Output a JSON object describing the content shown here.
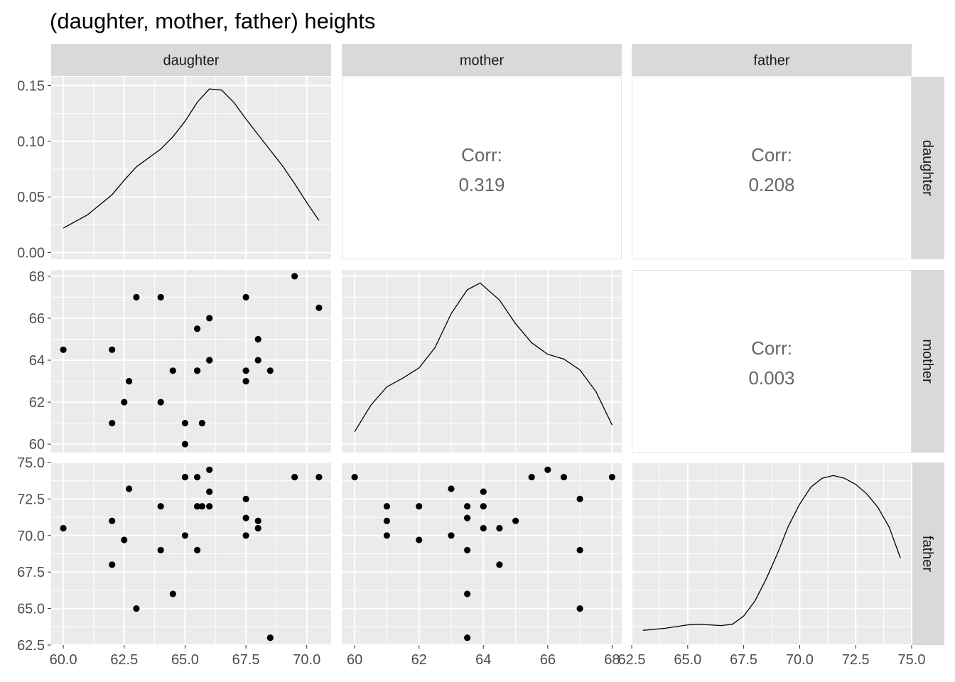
{
  "title": "(daughter, mother, father) heights",
  "variables": [
    "daughter",
    "mother",
    "father"
  ],
  "corr_label": "Corr:",
  "colors": {
    "panel_bg": "#EBEBEB",
    "strip_bg": "#D9D9D9",
    "grid": "#FFFFFF",
    "point": "#000000",
    "line": "#000000",
    "corr_text": "#666666",
    "axis_text": "#4D4D4D"
  },
  "chart_data": {
    "type": "scatter",
    "subtype": "pairs-matrix",
    "grid": true,
    "axes": {
      "daughter": {
        "range": [
          59.5,
          71.0
        ],
        "ticks": [
          60.0,
          62.5,
          65.0,
          67.5,
          70.0
        ],
        "tick_labels": [
          "60.0",
          "62.5",
          "65.0",
          "67.5",
          "70.0"
        ]
      },
      "mother": {
        "range": [
          59.6,
          68.3
        ],
        "ticks": [
          60,
          62,
          64,
          66,
          68
        ],
        "tick_labels": [
          "60",
          "62",
          "64",
          "66",
          "68"
        ]
      },
      "father": {
        "range": [
          62.5,
          75.0
        ],
        "ticks": [
          62.5,
          65.0,
          67.5,
          70.0,
          72.5,
          75.0
        ],
        "tick_labels": [
          "62.5",
          "65.0",
          "67.5",
          "70.0",
          "72.5",
          "75.0"
        ]
      },
      "density": {
        "range": [
          -0.006,
          0.158
        ],
        "ticks": [
          0.0,
          0.05,
          0.1,
          0.15
        ],
        "tick_labels": [
          "0.00",
          "0.05",
          "0.10",
          "0.15"
        ]
      }
    },
    "correlations": [
      {
        "row": "daughter",
        "col": "mother",
        "value": "0.319"
      },
      {
        "row": "daughter",
        "col": "father",
        "value": "0.208"
      },
      {
        "row": "mother",
        "col": "father",
        "value": "0.003"
      }
    ],
    "densities": {
      "daughter": [
        [
          60.0,
          0.022
        ],
        [
          61.0,
          0.034
        ],
        [
          62.0,
          0.052
        ],
        [
          62.5,
          0.065
        ],
        [
          63.0,
          0.077
        ],
        [
          64.0,
          0.093
        ],
        [
          64.5,
          0.104
        ],
        [
          65.0,
          0.118
        ],
        [
          65.5,
          0.135
        ],
        [
          66.0,
          0.147
        ],
        [
          66.5,
          0.146
        ],
        [
          67.0,
          0.135
        ],
        [
          67.5,
          0.12
        ],
        [
          68.0,
          0.106
        ],
        [
          68.5,
          0.092
        ],
        [
          69.0,
          0.078
        ],
        [
          69.5,
          0.062
        ],
        [
          70.0,
          0.045
        ],
        [
          70.5,
          0.029
        ]
      ],
      "mother": [
        [
          60.0,
          0.021
        ],
        [
          60.5,
          0.06
        ],
        [
          61.0,
          0.087
        ],
        [
          61.5,
          0.1
        ],
        [
          62.0,
          0.115
        ],
        [
          62.5,
          0.145
        ],
        [
          63.0,
          0.195
        ],
        [
          63.5,
          0.23
        ],
        [
          63.9,
          0.24
        ],
        [
          64.5,
          0.215
        ],
        [
          65.0,
          0.18
        ],
        [
          65.5,
          0.152
        ],
        [
          66.0,
          0.135
        ],
        [
          66.5,
          0.128
        ],
        [
          67.0,
          0.112
        ],
        [
          67.5,
          0.08
        ],
        [
          68.0,
          0.031
        ]
      ],
      "father": [
        [
          63.0,
          0.012
        ],
        [
          64.0,
          0.015
        ],
        [
          65.0,
          0.02
        ],
        [
          65.5,
          0.021
        ],
        [
          66.0,
          0.02
        ],
        [
          66.5,
          0.019
        ],
        [
          67.0,
          0.021
        ],
        [
          67.5,
          0.033
        ],
        [
          68.0,
          0.055
        ],
        [
          68.5,
          0.087
        ],
        [
          69.0,
          0.124
        ],
        [
          69.5,
          0.165
        ],
        [
          70.0,
          0.197
        ],
        [
          70.5,
          0.222
        ],
        [
          71.0,
          0.235
        ],
        [
          71.5,
          0.239
        ],
        [
          72.0,
          0.235
        ],
        [
          72.5,
          0.226
        ],
        [
          73.0,
          0.212
        ],
        [
          73.5,
          0.192
        ],
        [
          74.0,
          0.163
        ],
        [
          74.5,
          0.118
        ]
      ]
    },
    "points": [
      {
        "daughter": 60.0,
        "mother": 64.5,
        "father": 70.5
      },
      {
        "daughter": 62.0,
        "mother": 64.5,
        "father": 68.0
      },
      {
        "daughter": 62.0,
        "mother": 61.0,
        "father": 71.0
      },
      {
        "daughter": 62.5,
        "mother": 62.0,
        "father": 69.7
      },
      {
        "daughter": 62.7,
        "mother": 63.0,
        "father": 73.2
      },
      {
        "daughter": 63.0,
        "mother": 67.0,
        "father": 65.0
      },
      {
        "daughter": 64.0,
        "mother": 67.0,
        "father": 69.0
      },
      {
        "daughter": 64.0,
        "mother": 62.0,
        "father": 72.0
      },
      {
        "daughter": 64.5,
        "mother": 63.5,
        "father": 66.0
      },
      {
        "daughter": 65.0,
        "mother": 61.0,
        "father": 70.0
      },
      {
        "daughter": 65.0,
        "mother": 60.0,
        "father": 74.0
      },
      {
        "daughter": 65.5,
        "mother": 65.5,
        "father": 74.0
      },
      {
        "daughter": 65.5,
        "mother": 63.5,
        "father": 72.0
      },
      {
        "daughter": 65.5,
        "mother": 63.5,
        "father": 69.0
      },
      {
        "daughter": 65.7,
        "mother": 61.0,
        "father": 72.0
      },
      {
        "daughter": 66.0,
        "mother": 66.0,
        "father": 74.5
      },
      {
        "daughter": 66.0,
        "mother": 64.0,
        "father": 73.0
      },
      {
        "daughter": 66.0,
        "mother": 64.0,
        "father": 72.0
      },
      {
        "daughter": 67.5,
        "mother": 67.0,
        "father": 72.5
      },
      {
        "daughter": 67.5,
        "mother": 63.5,
        "father": 71.2
      },
      {
        "daughter": 67.5,
        "mother": 63.0,
        "father": 70.0
      },
      {
        "daughter": 68.0,
        "mother": 65.0,
        "father": 71.0
      },
      {
        "daughter": 68.0,
        "mother": 64.0,
        "father": 70.5
      },
      {
        "daughter": 68.5,
        "mother": 63.5,
        "father": 63.0
      },
      {
        "daughter": 69.5,
        "mother": 68.0,
        "father": 74.0
      },
      {
        "daughter": 70.5,
        "mother": 66.5,
        "father": 74.0
      }
    ]
  }
}
